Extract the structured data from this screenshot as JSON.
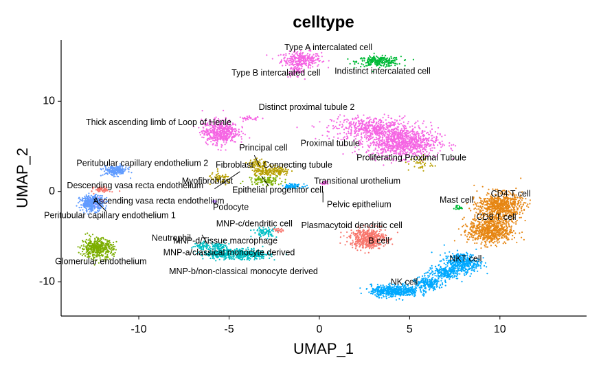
{
  "chart_data": {
    "type": "scatter",
    "title": "celltype",
    "xlabel": "UMAP_1",
    "ylabel": "UMAP_2",
    "xlim": [
      -14.3,
      14.8
    ],
    "ylim": [
      -13.8,
      16.8
    ],
    "xticks": [
      -10,
      -5,
      0,
      5,
      10
    ],
    "yticks": [
      -10,
      0,
      10
    ],
    "xtick_labels": [
      "-10",
      "-5",
      "0",
      "5",
      "10"
    ],
    "ytick_labels": [
      "-10",
      "0",
      "10"
    ],
    "grid": false,
    "legend": "none",
    "colors": {
      "pink": "#f564e3",
      "green": "#00ba38",
      "olive": "#b79f00",
      "lavender": "#b983ff",
      "blue": "#619cff",
      "lightgreen": "#7cae00",
      "teal": "#00bfc4",
      "cyan": "#00a9ff",
      "orange": "#e68613",
      "salmon": "#f8766d",
      "red": "#f8766d"
    },
    "clusters": [
      {
        "name": "Type A intercalated cell",
        "color": "#f564e3",
        "blobs": [
          [
            -1.0,
            14.6,
            1.0,
            0.8,
            300
          ]
        ]
      },
      {
        "name": "Type B intercalated cell",
        "color": "#f564e3",
        "blobs": [
          [
            -1.3,
            13.3,
            0.4,
            0.6,
            50
          ]
        ]
      },
      {
        "name": "Indistinct intercalated cell",
        "color": "#00ba38",
        "blobs": [
          [
            3.3,
            14.4,
            1.1,
            0.5,
            260
          ]
        ]
      },
      {
        "name": "Distinct proximal tubule 2",
        "color": "#f564e3",
        "blobs": [
          [
            2.9,
            7.0,
            2.0,
            1.2,
            500
          ],
          [
            -3.8,
            8.1,
            0.6,
            0.2,
            30
          ]
        ]
      },
      {
        "name": "Proximal tubule",
        "color": "#f564e3",
        "blobs": [
          [
            4.6,
            5.4,
            1.8,
            1.5,
            900
          ]
        ]
      },
      {
        "name": "Proliferating Proximal Tubule",
        "color": "#b79f00",
        "blobs": [
          [
            5.6,
            3.1,
            0.6,
            0.8,
            40
          ]
        ]
      },
      {
        "name": "Thick ascending limb of Loop of Henle",
        "color": "#f564e3",
        "blobs": [
          [
            -5.5,
            6.6,
            0.9,
            1.2,
            500
          ]
        ]
      },
      {
        "name": "Principal cell",
        "color": "#b79f00",
        "blobs": [
          [
            -3.4,
            3.0,
            0.5,
            0.6,
            80
          ]
        ]
      },
      {
        "name": "Fibroblast",
        "color": "#b79f00",
        "blobs": [
          [
            -3.2,
            2.2,
            0.5,
            0.4,
            60
          ]
        ]
      },
      {
        "name": "Connecting tubule",
        "color": "#b79f00",
        "blobs": [
          [
            -2.3,
            2.2,
            0.6,
            0.5,
            120
          ]
        ]
      },
      {
        "name": "Myofibroblast",
        "color": "#b79f00",
        "blobs": [
          [
            -5.5,
            1.4,
            0.6,
            0.6,
            60
          ]
        ]
      },
      {
        "name": "Epithelial progenitor cell",
        "color": "#7cae00",
        "blobs": [
          [
            -3.0,
            1.2,
            0.9,
            0.5,
            100
          ]
        ]
      },
      {
        "name": "Transitional urothelium",
        "color": "#00a9ff",
        "blobs": [
          [
            -1.5,
            0.6,
            0.5,
            0.2,
            70
          ]
        ]
      },
      {
        "name": "Pelvic epithelium",
        "color": "#f564e3",
        "blobs": [
          [
            0.3,
            0.9,
            0.15,
            0.2,
            20
          ]
        ]
      },
      {
        "name": "Peritubular capillary endothelium 2",
        "color": "#619cff",
        "blobs": [
          [
            -11.3,
            2.3,
            0.6,
            0.5,
            200
          ]
        ]
      },
      {
        "name": "Descending vasa recta endothelium",
        "color": "#f8766d",
        "blobs": [
          [
            -12.0,
            0.2,
            0.4,
            0.3,
            60
          ]
        ]
      },
      {
        "name": "Ascending vasa recta endothelium",
        "color": "#b983ff",
        "blobs": [
          [
            -12.5,
            -1.2,
            0.5,
            0.4,
            120
          ]
        ]
      },
      {
        "name": "Peritubular capillary endothelium 1",
        "color": "#619cff",
        "blobs": [
          [
            -12.6,
            -1.3,
            0.6,
            0.8,
            320
          ]
        ]
      },
      {
        "name": "Podocyte",
        "color": "#b983ff",
        "blobs": [
          [
            -5.8,
            -1.1,
            0.1,
            0.1,
            15
          ]
        ]
      },
      {
        "name": "Glomerular endothelium",
        "color": "#7cae00",
        "blobs": [
          [
            -12.3,
            -6.3,
            0.8,
            1.0,
            450
          ]
        ]
      },
      {
        "name": "MNP-c/dendritic cell",
        "color": "#00bfc4",
        "blobs": [
          [
            -3.0,
            -4.5,
            0.6,
            0.5,
            80
          ]
        ]
      },
      {
        "name": "Neutrophil",
        "color": "#00bfc4",
        "blobs": [
          [
            -6.5,
            -6.0,
            0.4,
            0.4,
            50
          ]
        ]
      },
      {
        "name": "MNP-d/Tissue macrophage",
        "color": "#00bfc4",
        "blobs": [
          [
            -5.7,
            -6.0,
            0.6,
            0.4,
            70
          ]
        ]
      },
      {
        "name": "MNP-a/classical monocyte derived",
        "color": "#00bfc4",
        "blobs": [
          [
            -5.3,
            -6.9,
            1.0,
            0.5,
            300
          ]
        ]
      },
      {
        "name": "MNP-b/non-classical monocyte derived",
        "color": "#00bfc4",
        "blobs": [
          [
            -3.8,
            -7.0,
            1.0,
            0.5,
            250
          ]
        ]
      },
      {
        "name": "Plasmacytoid dendritic cell",
        "color": "#f8766d",
        "blobs": [
          [
            -2.3,
            -4.3,
            0.25,
            0.2,
            20
          ]
        ]
      },
      {
        "name": "B cell",
        "color": "#f8766d",
        "blobs": [
          [
            2.7,
            -5.2,
            0.9,
            1.0,
            500
          ]
        ]
      },
      {
        "name": "Mast cell",
        "color": "#00ba38",
        "blobs": [
          [
            7.7,
            -1.8,
            0.3,
            0.2,
            25
          ]
        ]
      },
      {
        "name": "CD4 T cell",
        "color": "#e68613",
        "blobs": [
          [
            10.0,
            -1.6,
            1.1,
            1.3,
            700
          ]
        ]
      },
      {
        "name": "CD8 T cell",
        "color": "#e68613",
        "blobs": [
          [
            9.5,
            -4.3,
            1.1,
            1.4,
            700
          ]
        ]
      },
      {
        "name": "NKT cell",
        "color": "#00a9ff",
        "blobs": [
          [
            7.9,
            -7.9,
            0.9,
            1.0,
            400
          ],
          [
            6.9,
            -9.0,
            0.8,
            0.7,
            200
          ]
        ]
      },
      {
        "name": "NK cell",
        "color": "#00a9ff",
        "blobs": [
          [
            4.2,
            -11.0,
            1.2,
            0.6,
            500
          ],
          [
            6.0,
            -10.2,
            0.8,
            0.6,
            200
          ]
        ]
      }
    ],
    "labels": [
      {
        "text": "Type A intercalated cell",
        "x": 0.5,
        "y": 15.9
      },
      {
        "text": "Type B intercalated cell",
        "x": -2.4,
        "y": 13.1
      },
      {
        "text": "Indistinct intercalated cell",
        "x": 3.5,
        "y": 13.3
      },
      {
        "text": "Distinct proximal tubule 2",
        "x": -0.7,
        "y": 9.3
      },
      {
        "text": "Thick ascending limb of Loop of Henle",
        "x": -8.9,
        "y": 7.6
      },
      {
        "text": "Proximal tubule",
        "x": 0.6,
        "y": 5.3
      },
      {
        "text": "Principal cell",
        "x": -3.1,
        "y": 4.8
      },
      {
        "text": "Proliferating Proximal Tubule",
        "x": 5.1,
        "y": 3.7
      },
      {
        "text": "Peritubular capillary endothelium 2",
        "x": -9.8,
        "y": 3.1
      },
      {
        "text": "Fibroblast",
        "x": -4.7,
        "y": 2.9
      },
      {
        "text": "Connecting tubule",
        "x": -1.2,
        "y": 2.9
      },
      {
        "text": "Myofibroblast",
        "x": -6.2,
        "y": 1.1
      },
      {
        "text": "Transitional urothelium",
        "x": 2.1,
        "y": 1.1
      },
      {
        "text": "Descending vasa recta endothelium",
        "x": -10.2,
        "y": 0.6
      },
      {
        "text": "Epithelial progenitor cell",
        "x": -2.3,
        "y": 0.1
      },
      {
        "text": "Ascending vasa recta endothelium",
        "x": -8.9,
        "y": -1.1
      },
      {
        "text": "Pelvic epithelium",
        "x": 2.2,
        "y": -1.5
      },
      {
        "text": "Podocyte",
        "x": -4.9,
        "y": -1.8
      },
      {
        "text": "Mast cell",
        "x": 7.6,
        "y": -1.0
      },
      {
        "text": "CD4 T cell",
        "x": 10.6,
        "y": -0.3
      },
      {
        "text": "Peritubular capillary endothelium 1",
        "x": -11.6,
        "y": -2.7
      },
      {
        "text": "CD8 T cell",
        "x": 9.8,
        "y": -2.9
      },
      {
        "text": "MNP-c/dendritic cell",
        "x": -3.6,
        "y": -3.6
      },
      {
        "text": "Plasmacytoid dendritic cell",
        "x": 1.8,
        "y": -3.8
      },
      {
        "text": "Neutrophil",
        "x": -8.2,
        "y": -5.2
      },
      {
        "text": "MNP-d/Tissue macrophage",
        "x": -5.2,
        "y": -5.5
      },
      {
        "text": "B cell",
        "x": 3.3,
        "y": -5.5
      },
      {
        "text": "MNP-a/classical monocyte derived",
        "x": -5.0,
        "y": -6.8
      },
      {
        "text": "NKT cell",
        "x": 8.1,
        "y": -7.5
      },
      {
        "text": "Glomerular endothelium",
        "x": -12.1,
        "y": -7.8
      },
      {
        "text": "MNP-b/non-classical monocyte derived",
        "x": -4.2,
        "y": -8.9
      },
      {
        "text": "NK cell",
        "x": 4.7,
        "y": -10.1
      }
    ],
    "leader_lines": [
      [
        -4.4,
        2.2,
        -5.8,
        0.3
      ],
      [
        -3.6,
        4.0,
        -3.3,
        2.8
      ],
      [
        -3.2,
        1.7,
        -2.8,
        0.6
      ],
      [
        0.2,
        0.0,
        0.2,
        -1.2
      ],
      [
        -12.5,
        -0.8,
        -11.8,
        -2.2
      ],
      [
        -6.5,
        -4.8,
        -6.2,
        -5.8
      ]
    ]
  }
}
